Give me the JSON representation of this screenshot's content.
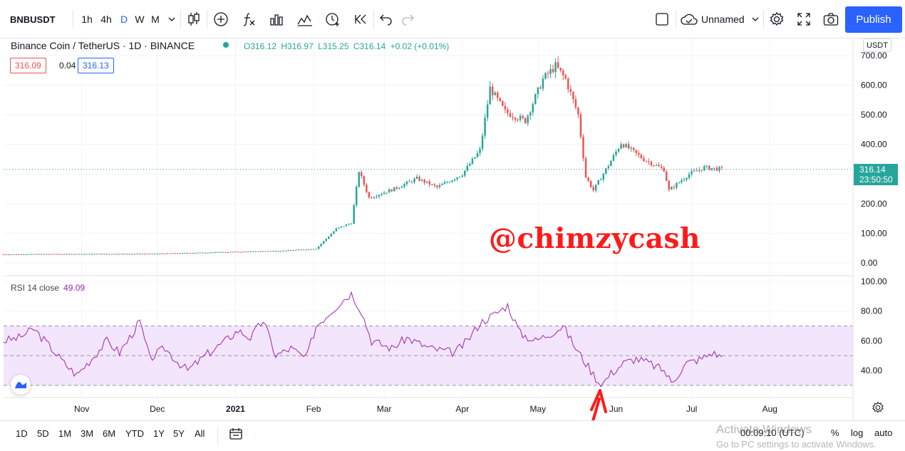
{
  "toolbar": {
    "symbol": "BNBUSDT",
    "intervals": [
      "1h",
      "4h",
      "D",
      "W",
      "M"
    ],
    "active_interval": "D",
    "layout_name": "Unnamed",
    "publish_label": "Publish",
    "icons": [
      "chevron-down-icon",
      "candles-icon",
      "add-indicator-icon",
      "fx-icon",
      "bar-chart-icon",
      "templates-icon",
      "alert-icon",
      "replay-icon",
      "undo-icon",
      "redo-icon",
      "layout-icon",
      "cloud-icon",
      "settings-icon",
      "fullscreen-icon",
      "camera-icon"
    ]
  },
  "legend": {
    "title": "Binance Coin / TetherUS · 1D · BINANCE",
    "open": "O316.12",
    "high": "H316.97",
    "low": "L315.25",
    "close": "C316.14",
    "change": "+0.02 (+0.01%)",
    "bid": "316.09",
    "spread": "0.04",
    "ask": "316.13"
  },
  "watermark": "@chimzycash",
  "price_axis": {
    "currency": "USDT",
    "last_price": "316.14",
    "countdown": "23:50:50"
  },
  "rsi": {
    "label": "RSI 14 close",
    "value": "49.09"
  },
  "colors": {
    "up": "#26a69a",
    "down": "#ef5350",
    "rsi_line": "#9c27b0",
    "rsi_band": "#f3e5fb",
    "accent": "#2962ff",
    "annotation_arrow": "#ff1a1a"
  },
  "bottom_bar": {
    "ranges": [
      "1D",
      "5D",
      "1M",
      "3M",
      "6M",
      "YTD",
      "1Y",
      "5Y",
      "All"
    ],
    "clock": "00:09:10 (UTC)",
    "percent_label": "%",
    "log_label": "log",
    "auto_label": "auto"
  },
  "os_overlay": {
    "line1": "Activate Windows",
    "line2": "Go to PC settings to activate Windows."
  },
  "chart_data": [
    {
      "type": "candlestick",
      "title": "Binance Coin / TetherUS · 1D · BINANCE",
      "y_ticks": [
        "700.00",
        "600.00",
        "500.00",
        "400.00",
        "300.00",
        "200.00",
        "100.00",
        "0.00"
      ],
      "x_ticks": [
        "Nov",
        "Dec",
        "2021",
        "Feb",
        "Mar",
        "Apr",
        "May",
        "Jun",
        "Jul",
        "Aug"
      ],
      "ylim": [
        0,
        700
      ],
      "x_range": [
        "2020-10-01",
        "2021-09-03"
      ],
      "last_price": 316.14,
      "path": [
        [
          "2020-10-01",
          29
        ],
        [
          "2020-10-31",
          30
        ],
        [
          "2020-11-30",
          31
        ],
        [
          "2020-12-31",
          37
        ],
        [
          "2021-01-20",
          41
        ],
        [
          "2021-02-02",
          48
        ],
        [
          "2021-02-10",
          115
        ],
        [
          "2021-02-16",
          135
        ],
        [
          "2021-02-19",
          310
        ],
        [
          "2021-02-23",
          220
        ],
        [
          "2021-03-05",
          250
        ],
        [
          "2021-03-14",
          285
        ],
        [
          "2021-03-22",
          255
        ],
        [
          "2021-04-01",
          300
        ],
        [
          "2021-04-08",
          380
        ],
        [
          "2021-04-12",
          590
        ],
        [
          "2021-04-18",
          510
        ],
        [
          "2021-04-26",
          480
        ],
        [
          "2021-05-03",
          620
        ],
        [
          "2021-05-08",
          665
        ],
        [
          "2021-05-12",
          620
        ],
        [
          "2021-05-17",
          500
        ],
        [
          "2021-05-20",
          290
        ],
        [
          "2021-05-23",
          245
        ],
        [
          "2021-05-29",
          330
        ],
        [
          "2021-06-03",
          405
        ],
        [
          "2021-06-12",
          350
        ],
        [
          "2021-06-20",
          315
        ],
        [
          "2021-06-22",
          245
        ],
        [
          "2021-06-30",
          300
        ],
        [
          "2021-07-06",
          322
        ],
        [
          "2021-07-13",
          316
        ]
      ]
    },
    {
      "type": "line",
      "title": "RSI 14 close",
      "y_ticks": [
        "100.00",
        "80.00",
        "60.00",
        "40.00"
      ],
      "ylim": [
        28,
        100
      ],
      "bands": [
        30,
        50,
        70
      ],
      "values_by_date": [
        [
          "2020-10-01",
          60
        ],
        [
          "2020-10-07",
          62
        ],
        [
          "2020-10-13",
          68
        ],
        [
          "2020-10-20",
          55
        ],
        [
          "2020-10-25",
          45
        ],
        [
          "2020-10-30",
          37
        ],
        [
          "2020-11-05",
          48
        ],
        [
          "2020-11-11",
          60
        ],
        [
          "2020-11-16",
          52
        ],
        [
          "2020-11-20",
          62
        ],
        [
          "2020-11-24",
          73
        ],
        [
          "2020-11-28",
          48
        ],
        [
          "2020-12-04",
          55
        ],
        [
          "2020-12-09",
          46
        ],
        [
          "2020-12-13",
          40
        ],
        [
          "2020-12-20",
          50
        ],
        [
          "2020-12-28",
          60
        ],
        [
          "2021-01-02",
          67
        ],
        [
          "2021-01-07",
          62
        ],
        [
          "2021-01-12",
          74
        ],
        [
          "2021-01-17",
          50
        ],
        [
          "2021-01-23",
          55
        ],
        [
          "2021-01-29",
          48
        ],
        [
          "2021-02-02",
          70
        ],
        [
          "2021-02-08",
          80
        ],
        [
          "2021-02-13",
          88
        ],
        [
          "2021-02-16",
          92
        ],
        [
          "2021-02-20",
          80
        ],
        [
          "2021-02-24",
          60
        ],
        [
          "2021-03-04",
          55
        ],
        [
          "2021-03-10",
          62
        ],
        [
          "2021-03-19",
          55
        ],
        [
          "2021-03-29",
          52
        ],
        [
          "2021-04-03",
          60
        ],
        [
          "2021-04-08",
          72
        ],
        [
          "2021-04-14",
          78
        ],
        [
          "2021-04-19",
          84
        ],
        [
          "2021-04-24",
          65
        ],
        [
          "2021-04-30",
          60
        ],
        [
          "2021-05-06",
          65
        ],
        [
          "2021-05-11",
          70
        ],
        [
          "2021-05-16",
          55
        ],
        [
          "2021-05-22",
          40
        ],
        [
          "2021-05-26",
          30
        ],
        [
          "2021-05-30",
          38
        ],
        [
          "2021-06-04",
          45
        ],
        [
          "2021-06-09",
          48
        ],
        [
          "2021-06-14",
          45
        ],
        [
          "2021-06-20",
          40
        ],
        [
          "2021-06-23",
          32
        ],
        [
          "2021-06-29",
          45
        ],
        [
          "2021-07-05",
          48
        ],
        [
          "2021-07-09",
          52
        ],
        [
          "2021-07-13",
          49.09
        ]
      ]
    }
  ]
}
